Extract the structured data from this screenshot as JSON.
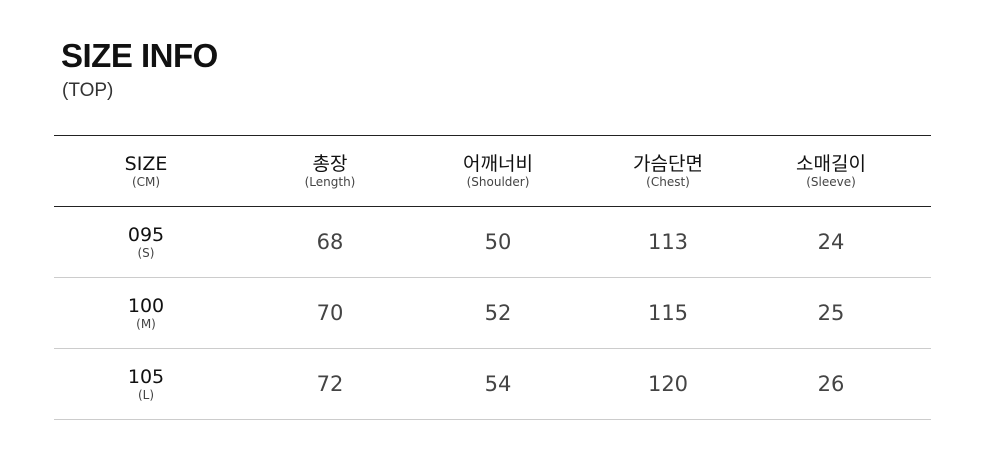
{
  "title": "SIZE INFO",
  "subtitle": "(TOP)",
  "headers": [
    {
      "main": "SIZE",
      "sub": "(CM)"
    },
    {
      "main": "총장",
      "sub": "(Length)"
    },
    {
      "main": "어깨너비",
      "sub": "(Shoulder)"
    },
    {
      "main": "가슴단면",
      "sub": "(Chest)"
    },
    {
      "main": "소매길이",
      "sub": "(Sleeve)"
    }
  ],
  "rows": [
    {
      "size": "095",
      "label": "(S)",
      "values": [
        "68",
        "50",
        "113",
        "24"
      ]
    },
    {
      "size": "100",
      "label": "(M)",
      "values": [
        "70",
        "52",
        "115",
        "25"
      ]
    },
    {
      "size": "105",
      "label": "(L)",
      "values": [
        "72",
        "54",
        "120",
        "26"
      ]
    }
  ]
}
